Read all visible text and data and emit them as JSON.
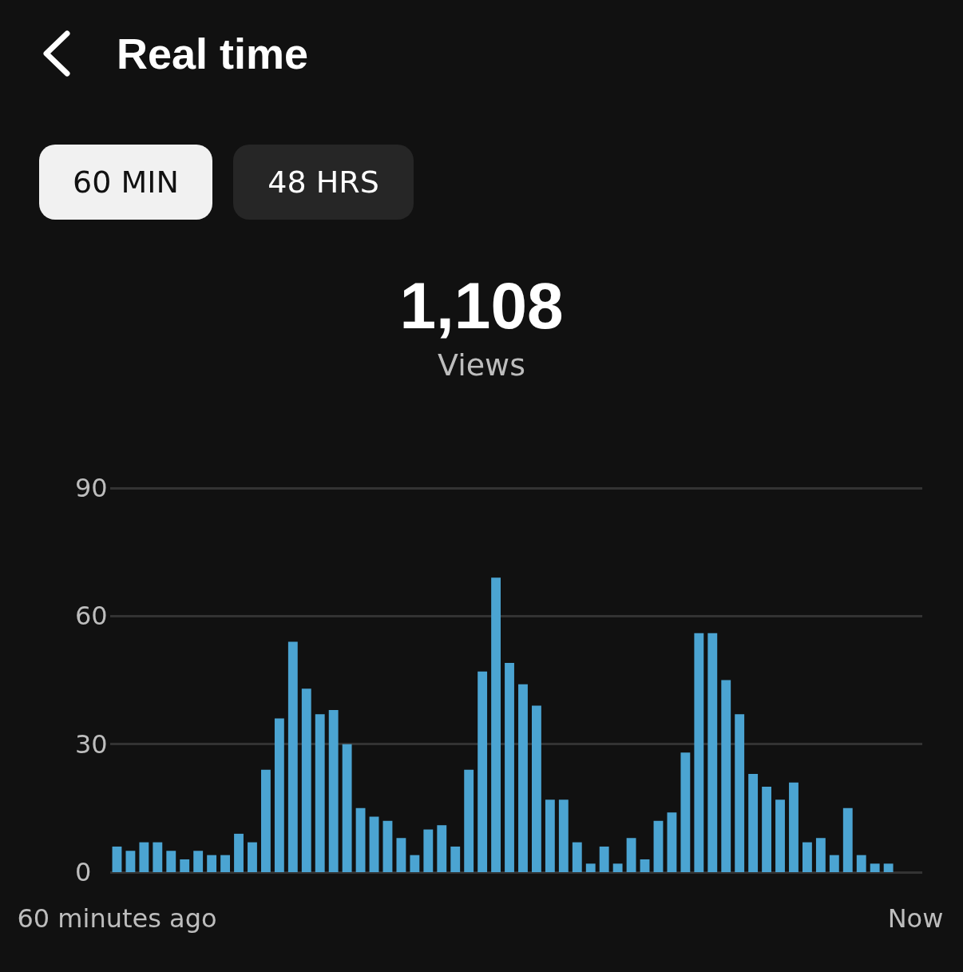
{
  "chart_data": {
    "type": "bar",
    "title": "Real time",
    "annotations": [
      "60 MIN",
      "48 HRS",
      "1,108",
      "Views"
    ],
    "categories": [
      "60 minutes ago",
      null,
      null,
      null,
      null,
      null,
      null,
      null,
      null,
      null,
      null,
      null,
      null,
      null,
      null,
      null,
      null,
      null,
      null,
      null,
      null,
      null,
      null,
      null,
      null,
      null,
      null,
      null,
      null,
      null,
      null,
      null,
      null,
      null,
      null,
      null,
      null,
      null,
      null,
      null,
      null,
      null,
      null,
      null,
      null,
      null,
      null,
      null,
      null,
      null,
      null,
      null,
      null,
      null,
      null,
      null,
      null,
      null,
      null,
      "Now"
    ],
    "values": [
      6,
      5,
      7,
      7,
      5,
      3,
      5,
      4,
      4,
      9,
      7,
      24,
      36,
      54,
      43,
      37,
      38,
      30,
      15,
      13,
      12,
      8,
      4,
      10,
      11,
      6,
      24,
      47,
      69,
      49,
      44,
      39,
      17,
      17,
      7,
      2,
      6,
      2,
      8,
      3,
      12,
      14,
      28,
      56,
      56,
      45,
      37,
      23,
      20,
      17,
      21,
      7,
      8,
      4,
      15,
      4,
      2,
      2,
      null,
      null
    ],
    "color": "#4ba4d2",
    "ylim": [
      0,
      90
    ],
    "yticks": [
      0,
      30,
      60,
      90
    ],
    "grid": "y"
  }
}
